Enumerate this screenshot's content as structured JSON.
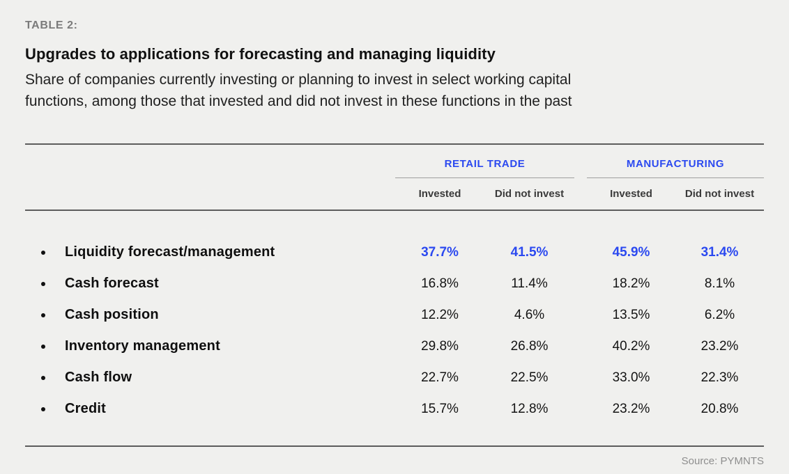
{
  "header": {
    "table_label": "TABLE 2:",
    "title": "Upgrades to applications for forecasting and managing liquidity",
    "subtitle_line1": "Share of companies currently investing or planning to invest in select working capital",
    "subtitle_line2": "functions, among those that invested and did not invest in these functions in the past"
  },
  "footer": {
    "source": "Source: PYMNTS"
  },
  "colors": {
    "background": "#f0f0ee",
    "accent_blue": "#2b49f0",
    "rule_dark": "#5c5c5c",
    "rule_light": "#9e9e9e",
    "label_gray": "#7b7b7b",
    "source_gray": "#8e8e8e"
  },
  "chart_data": {
    "type": "table",
    "title": "Upgrades to applications for forecasting and managing liquidity",
    "subtitle": "Share of companies currently investing or planning to invest in select working capital functions, among those that invested and did not invest in these functions in the past",
    "column_groups": [
      {
        "label": "RETAIL TRADE",
        "columns": [
          "Invested",
          "Did not invest"
        ]
      },
      {
        "label": "MANUFACTURING",
        "columns": [
          "Invested",
          "Did not invest"
        ]
      }
    ],
    "rows": [
      {
        "label": "Liquidity forecast/management",
        "values": [
          "37.7%",
          "41.5%",
          "45.9%",
          "31.4%"
        ],
        "highlight": true
      },
      {
        "label": "Cash forecast",
        "values": [
          "16.8%",
          "11.4%",
          "18.2%",
          "8.1%"
        ],
        "highlight": false
      },
      {
        "label": "Cash position",
        "values": [
          "12.2%",
          "4.6%",
          "13.5%",
          "6.2%"
        ],
        "highlight": false
      },
      {
        "label": "Inventory management",
        "values": [
          "29.8%",
          "26.8%",
          "40.2%",
          "23.2%"
        ],
        "highlight": false
      },
      {
        "label": "Cash flow",
        "values": [
          "22.7%",
          "22.5%",
          "33.0%",
          "22.3%"
        ],
        "highlight": false
      },
      {
        "label": "Credit",
        "values": [
          "15.7%",
          "12.8%",
          "23.2%",
          "20.8%"
        ],
        "highlight": false
      }
    ],
    "source": "Source: PYMNTS"
  }
}
